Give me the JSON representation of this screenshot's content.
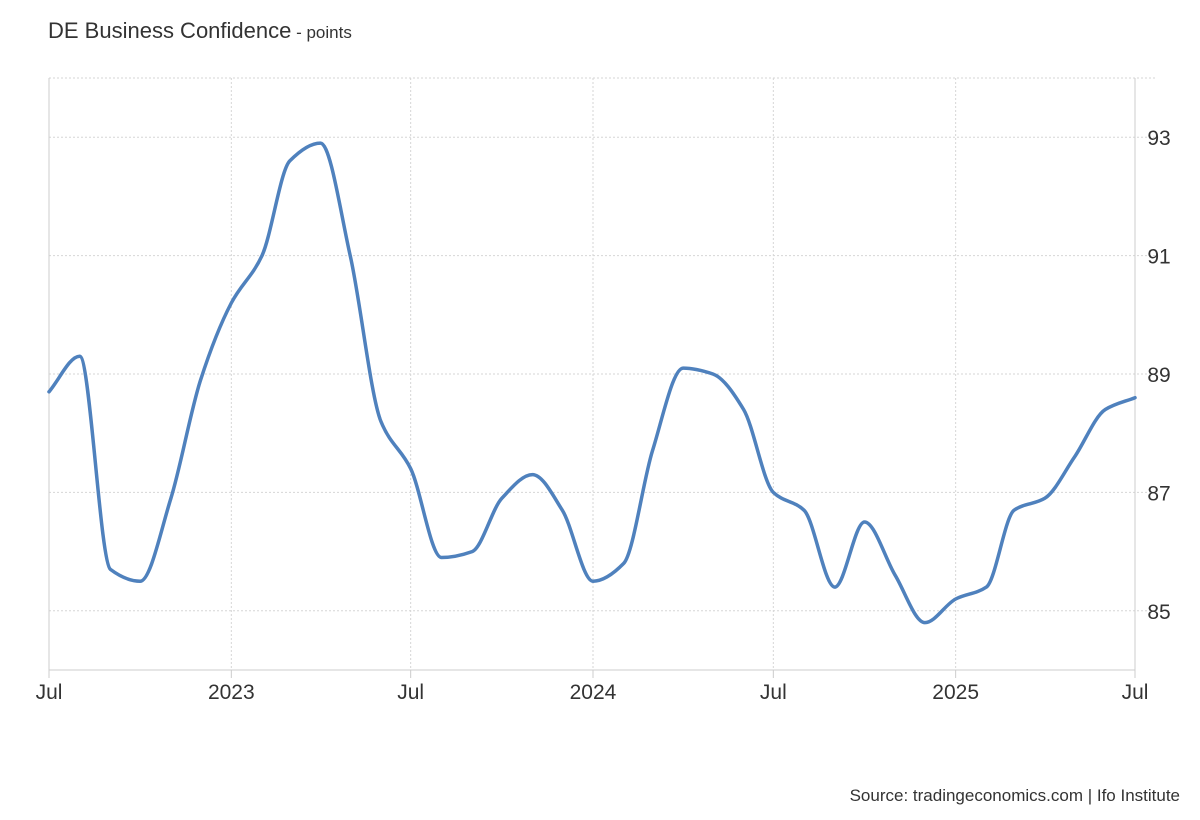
{
  "header": {
    "title": "DE Business Confidence",
    "unit": " - points"
  },
  "source": "Source: tradingeconomics.com | Ifo Institute",
  "chart_data": {
    "type": "line",
    "title": "DE Business Confidence",
    "unit": "points",
    "x_range": [
      "2022-07-01",
      "2025-07-01"
    ],
    "ylim": [
      84,
      94
    ],
    "y_ticks": [
      85,
      87,
      89,
      91,
      93
    ],
    "x_ticks": [
      {
        "date": "2022-07-01",
        "label": "Jul"
      },
      {
        "date": "2023-01-01",
        "label": "2023"
      },
      {
        "date": "2023-07-01",
        "label": "Jul"
      },
      {
        "date": "2024-01-01",
        "label": "2024"
      },
      {
        "date": "2024-07-01",
        "label": "Jul"
      },
      {
        "date": "2025-01-01",
        "label": "2025"
      },
      {
        "date": "2025-07-01",
        "label": "Jul"
      }
    ],
    "grid": true,
    "y_axis_side": "right",
    "line_color": "#4f81bd",
    "series": [
      {
        "points": [
          {
            "x": "2022-07-01",
            "y": 88.7
          },
          {
            "x": "2022-08-01",
            "y": 89.3
          },
          {
            "x": "2022-09-01",
            "y": 85.7
          },
          {
            "x": "2022-10-01",
            "y": 85.5
          },
          {
            "x": "2022-11-01",
            "y": 86.9
          },
          {
            "x": "2022-12-01",
            "y": 88.9
          },
          {
            "x": "2023-01-01",
            "y": 90.2
          },
          {
            "x": "2023-02-01",
            "y": 91.0
          },
          {
            "x": "2023-03-01",
            "y": 92.6
          },
          {
            "x": "2023-04-01",
            "y": 92.9
          },
          {
            "x": "2023-05-01",
            "y": 91.0
          },
          {
            "x": "2023-06-01",
            "y": 88.2
          },
          {
            "x": "2023-07-01",
            "y": 87.4
          },
          {
            "x": "2023-08-01",
            "y": 85.9
          },
          {
            "x": "2023-09-01",
            "y": 86.0
          },
          {
            "x": "2023-10-01",
            "y": 86.9
          },
          {
            "x": "2023-11-01",
            "y": 87.3
          },
          {
            "x": "2023-12-01",
            "y": 86.7
          },
          {
            "x": "2024-01-01",
            "y": 85.5
          },
          {
            "x": "2024-02-01",
            "y": 85.8
          },
          {
            "x": "2024-03-01",
            "y": 87.7
          },
          {
            "x": "2024-04-01",
            "y": 89.1
          },
          {
            "x": "2024-05-01",
            "y": 89.0
          },
          {
            "x": "2024-06-01",
            "y": 88.4
          },
          {
            "x": "2024-07-01",
            "y": 87.0
          },
          {
            "x": "2024-08-01",
            "y": 86.7
          },
          {
            "x": "2024-09-01",
            "y": 85.4
          },
          {
            "x": "2024-10-01",
            "y": 86.5
          },
          {
            "x": "2024-11-01",
            "y": 85.6
          },
          {
            "x": "2024-12-01",
            "y": 84.8
          },
          {
            "x": "2025-01-01",
            "y": 85.2
          },
          {
            "x": "2025-02-01",
            "y": 85.4
          },
          {
            "x": "2025-03-01",
            "y": 86.7
          },
          {
            "x": "2025-04-01",
            "y": 86.9
          },
          {
            "x": "2025-05-01",
            "y": 87.6
          },
          {
            "x": "2025-06-01",
            "y": 88.4
          },
          {
            "x": "2025-07-01",
            "y": 88.6
          }
        ]
      }
    ]
  }
}
